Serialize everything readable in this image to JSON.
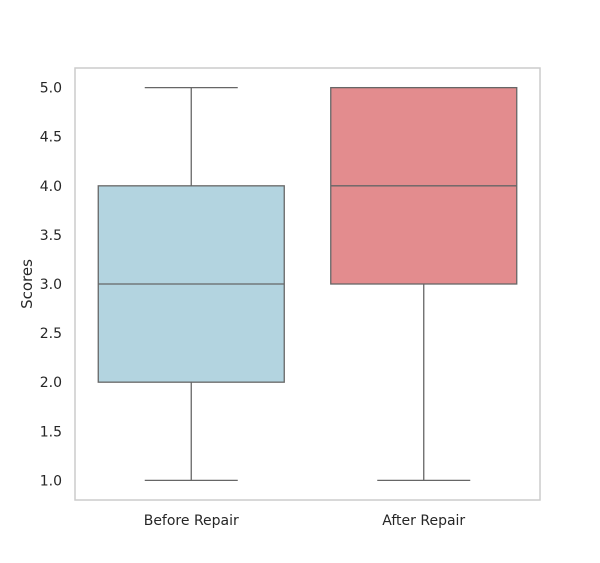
{
  "chart_data": {
    "type": "boxplot",
    "title": "",
    "xlabel": "",
    "ylabel": "Scores",
    "ylim": [
      0.8,
      5.2
    ],
    "yticks": [
      1.0,
      1.5,
      2.0,
      2.5,
      3.0,
      3.5,
      4.0,
      4.5,
      5.0
    ],
    "ytick_labels": [
      "1.0",
      "1.5",
      "2.0",
      "2.5",
      "3.0",
      "3.5",
      "4.0",
      "4.5",
      "5.0"
    ],
    "grid": false,
    "categories": [
      "Before Repair",
      "After Repair"
    ],
    "boxes": [
      {
        "category": "Before Repair",
        "whisker_low": 1.0,
        "q1": 2.0,
        "median": 3.0,
        "q3": 4.0,
        "whisker_high": 5.0,
        "color": "#b3d4e0"
      },
      {
        "category": "After Repair",
        "whisker_low": 1.0,
        "q1": 3.0,
        "median": 4.0,
        "q3": 5.0,
        "whisker_high": 5.0,
        "color": "#e38c8e"
      }
    ],
    "line_color": "#666666",
    "frame_color": "#cccccc"
  }
}
